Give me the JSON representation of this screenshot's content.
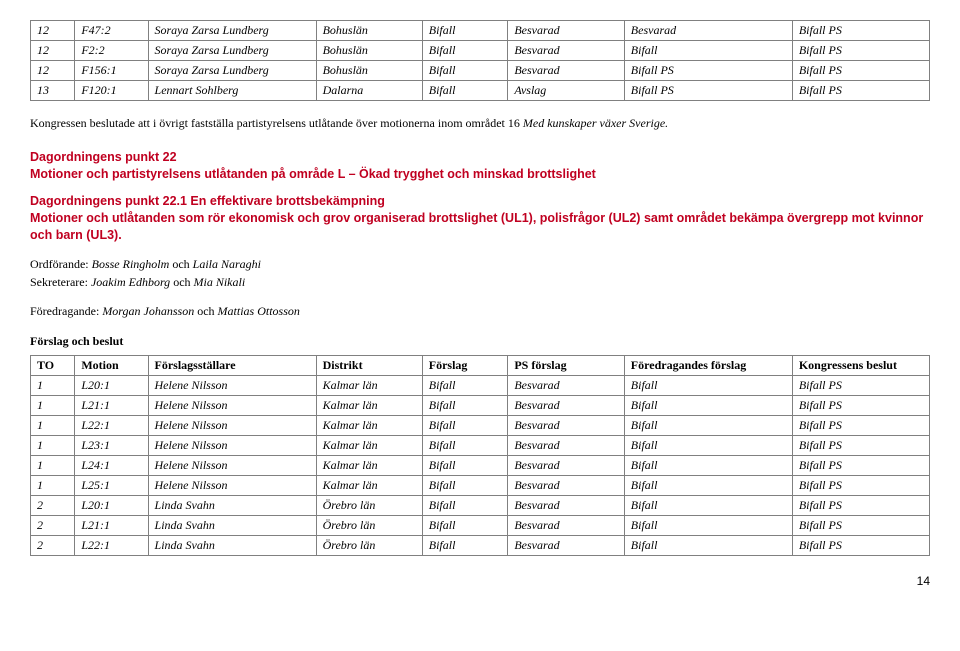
{
  "table1": {
    "rows": [
      [
        "12",
        "F47:2",
        "Soraya Zarsa Lundberg",
        "Bohuslän",
        "Bifall",
        "Besvarad",
        "Besvarad",
        "Bifall PS"
      ],
      [
        "12",
        "F2:2",
        "Soraya Zarsa Lundberg",
        "Bohuslän",
        "Bifall",
        "Besvarad",
        "Bifall",
        "Bifall PS"
      ],
      [
        "12",
        "F156:1",
        "Soraya Zarsa Lundberg",
        "Bohuslän",
        "Bifall",
        "Besvarad",
        "Bifall PS",
        "Bifall PS"
      ],
      [
        "13",
        "F120:1",
        "Lennart Sohlberg",
        "Dalarna",
        "Bifall",
        "Avslag",
        "Bifall PS",
        "Bifall PS"
      ]
    ]
  },
  "kongress_text_pre": "Kongressen beslutade att i övrigt fastställa partistyrelsens utlåtande över motionerna inom området 16 ",
  "kongress_text_ital": "Med kunskaper växer Sverige.",
  "punkt22_title": "Dagordningens punkt 22",
  "punkt22_body": "Motioner och partistyrelsens utlåtanden på område L – Ökad trygghet och minskad brottslighet",
  "punkt221_title": "Dagordningens punkt 22.1 En effektivare brottsbekämpning",
  "punkt221_body": "Motioner och utlåtanden som rör ekonomisk och grov organiserad brottslighet (UL1), polisfrågor (UL2) samt området bekämpa övergrepp mot kvinnor och barn (UL3).",
  "ordforande_label": "Ordförande: ",
  "ordforande_val": "Bosse Ringholm ",
  "och1": "och ",
  "ordforande_val2": "Laila Naraghi",
  "sekreterare_label": "Sekreterare: ",
  "sekreterare_val": "Joakim Edhborg ",
  "och2": "och ",
  "sekreterare_val2": "Mia Nikali",
  "foredragande_label": "Föredragande: ",
  "foredragande_val": "Morgan Johansson ",
  "och3": "och ",
  "foredragande_val2": "Mattias Ottosson",
  "forslag_beslut": "Förslag och beslut",
  "table2": {
    "headers": [
      "TO",
      "Motion",
      "Förslagsställare",
      "Distrikt",
      "Förslag",
      "PS förslag",
      "Föredragandes förslag",
      "Kongressens beslut"
    ],
    "rows": [
      [
        "1",
        "L20:1",
        "Helene Nilsson",
        "Kalmar län",
        "Bifall",
        "Besvarad",
        "Bifall",
        "Bifall PS"
      ],
      [
        "1",
        "L21:1",
        "Helene Nilsson",
        "Kalmar län",
        "Bifall",
        "Besvarad",
        "Bifall",
        "Bifall PS"
      ],
      [
        "1",
        "L22:1",
        "Helene Nilsson",
        "Kalmar län",
        "Bifall",
        "Besvarad",
        "Bifall",
        "Bifall PS"
      ],
      [
        "1",
        "L23:1",
        "Helene Nilsson",
        "Kalmar län",
        "Bifall",
        "Besvarad",
        "Bifall",
        "Bifall PS"
      ],
      [
        "1",
        "L24:1",
        "Helene Nilsson",
        "Kalmar län",
        "Bifall",
        "Besvarad",
        "Bifall",
        "Bifall PS"
      ],
      [
        "1",
        "L25:1",
        "Helene Nilsson",
        "Kalmar län",
        "Bifall",
        "Besvarad",
        "Bifall",
        "Bifall PS"
      ],
      [
        "2",
        "L20:1",
        "Linda Svahn",
        "Örebro län",
        "Bifall",
        "Besvarad",
        "Bifall",
        "Bifall PS"
      ],
      [
        "2",
        "L21:1",
        "Linda Svahn",
        "Örebro län",
        "Bifall",
        "Besvarad",
        "Bifall",
        "Bifall PS"
      ],
      [
        "2",
        "L22:1",
        "Linda Svahn",
        "Örebro län",
        "Bifall",
        "Besvarad",
        "Bifall",
        "Bifall PS"
      ]
    ]
  },
  "page_number": "14"
}
